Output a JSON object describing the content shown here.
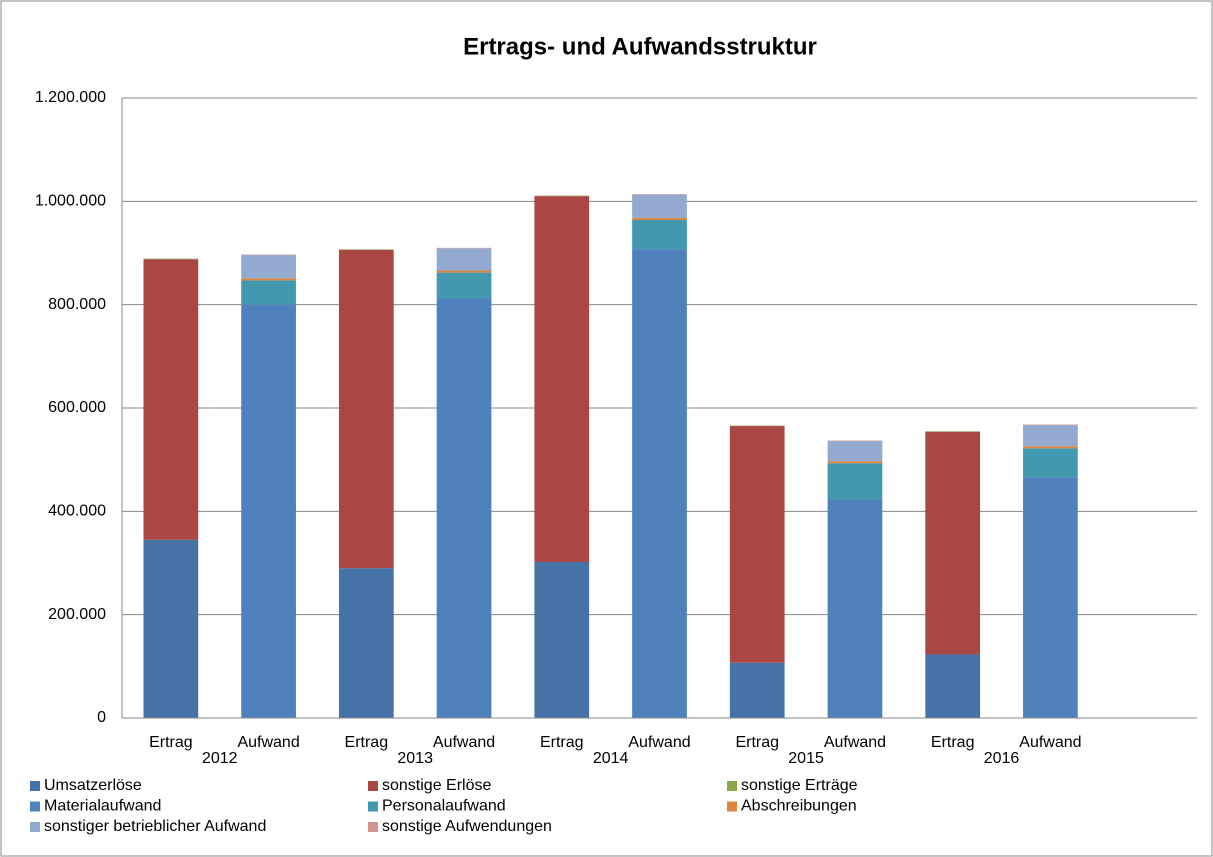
{
  "chart_data": {
    "type": "stacked_bar",
    "title": "Ertrags- und Aufwandsstruktur",
    "categories": [
      "Ertrag",
      "Aufwand",
      "Ertrag",
      "Aufwand",
      "Ertrag",
      "Aufwand",
      "Ertrag",
      "Aufwand",
      "Ertrag",
      "Aufwand",
      null
    ],
    "groups": [
      {
        "name": "2012",
        "span": [
          0,
          1
        ]
      },
      {
        "name": "2013",
        "span": [
          2,
          3
        ]
      },
      {
        "name": "2014",
        "span": [
          4,
          5
        ]
      },
      {
        "name": "2015",
        "span": [
          6,
          7
        ]
      },
      {
        "name": "2016",
        "span": [
          8,
          9
        ]
      }
    ],
    "series": [
      {
        "name": "Umsatzerlöse",
        "color": "#4572a7",
        "values": [
          345000,
          null,
          290000,
          null,
          302000,
          null,
          107000,
          null,
          123000,
          null,
          null
        ]
      },
      {
        "name": "sonstige Erlöse",
        "color": "#aa4643",
        "values": [
          543000,
          null,
          616000,
          null,
          708000,
          null,
          458000,
          null,
          431000,
          null,
          null
        ]
      },
      {
        "name": "sonstige Erträge",
        "color": "#89a54e",
        "values": [
          1000,
          null,
          1000,
          null,
          1000,
          null,
          1000,
          null,
          1000,
          null,
          null
        ]
      },
      {
        "name": "Materialaufwand",
        "color": "#4f81bd",
        "values": [
          null,
          800000,
          null,
          812000,
          null,
          907000,
          null,
          423000,
          null,
          466000,
          null
        ]
      },
      {
        "name": "Personalaufwand",
        "color": "#4198af",
        "values": [
          null,
          47000,
          null,
          50000,
          null,
          57000,
          null,
          70000,
          null,
          56000,
          null
        ]
      },
      {
        "name": "Abschreibungen",
        "color": "#db843d",
        "values": [
          null,
          4000,
          null,
          4000,
          null,
          4000,
          null,
          4000,
          null,
          4000,
          null
        ]
      },
      {
        "name": "sonstiger betrieblicher Aufwand",
        "color": "#93a9cf",
        "values": [
          null,
          45000,
          null,
          43000,
          null,
          45000,
          null,
          39000,
          null,
          41000,
          null
        ]
      },
      {
        "name": "sonstige Aufwendungen",
        "color": "#d19392",
        "values": [
          null,
          1000,
          null,
          1000,
          null,
          1000,
          null,
          1000,
          null,
          1000,
          null
        ]
      }
    ],
    "ylim": [
      0,
      1200000
    ],
    "yticks": [
      0,
      {
        "value": 200000,
        "label": "200.000"
      },
      {
        "value": 400000,
        "label": "400.000"
      },
      {
        "value": 600000,
        "label": "600.000"
      },
      {
        "value": 800000,
        "label": "800.000"
      },
      {
        "value": 1000000,
        "label": "1.000.000"
      },
      {
        "value": 1200000,
        "label": "1.200.000"
      }
    ],
    "grid": true,
    "legend": "bottom"
  }
}
